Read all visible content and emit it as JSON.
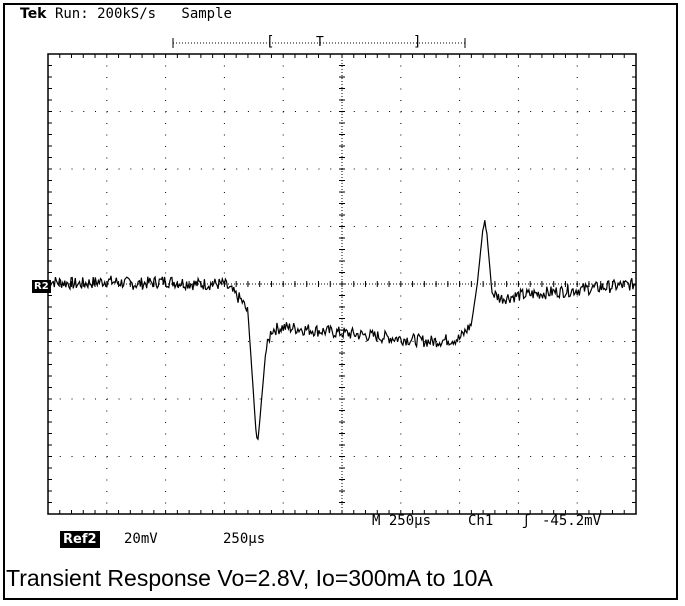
{
  "header": {
    "brand": "Tek",
    "status": "Run: 200kS/s",
    "mode": "Sample"
  },
  "trigger_bracket": {
    "left": "[",
    "marker": "T",
    "right": "]"
  },
  "ref_marker": "R2",
  "footer": {
    "ref_label": "Ref2",
    "ref_scale": "20mV",
    "ref_time": "250µs",
    "main_time": "M 250µs",
    "channel": "Ch1",
    "trigger_symbol": "ʃ",
    "trigger_level": "-45.2mV"
  },
  "caption": "Transient Response Vo=2.8V, Io=300mA to 10A",
  "chart_data": {
    "type": "line",
    "xlabel": "",
    "ylabel": "",
    "x_divisions": 10,
    "y_divisions": 8,
    "x_unit_per_div": "250µs",
    "y_unit_per_div": "20mV",
    "xlim": [
      0,
      10
    ],
    "ylim": [
      -4,
      4
    ],
    "grid": true,
    "series": [
      {
        "x": [
          0,
          0.5,
          1,
          1.5,
          2,
          2.5,
          3,
          3.3,
          3.4,
          3.5,
          3.55,
          3.6,
          3.7,
          3.8,
          4,
          4.5,
          5,
          5.5,
          6,
          6.5,
          7,
          7.2,
          7.3,
          7.4,
          7.45,
          7.55,
          7.7,
          8,
          8.5,
          9,
          9.5,
          10
        ],
        "y": [
          0.05,
          0.0,
          0.05,
          0.0,
          0.05,
          0.0,
          0.0,
          -0.3,
          -0.5,
          -2.0,
          -2.75,
          -2.4,
          -1.2,
          -0.8,
          -0.75,
          -0.8,
          -0.85,
          -0.9,
          -0.95,
          -1.0,
          -0.95,
          -0.7,
          0.0,
          1.0,
          1.05,
          -0.15,
          -0.25,
          -0.2,
          -0.15,
          -0.1,
          -0.05,
          0.0
        ]
      }
    ]
  }
}
